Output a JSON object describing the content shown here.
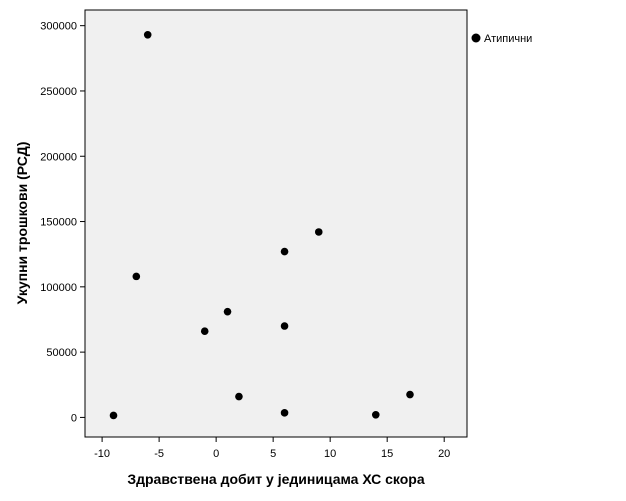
{
  "chart_data": {
    "type": "scatter",
    "xlabel": "Здравствена добит у јединицама ХС скора",
    "ylabel": "Укупни трошкови (РСД)",
    "xlim": [
      -11.5,
      22
    ],
    "ylim": [
      -15000,
      312000
    ],
    "x_ticks": [
      -10,
      -5,
      0,
      5,
      10,
      15,
      20
    ],
    "x_tick_labels": [
      "-10",
      "-5",
      "0",
      "5",
      "10",
      "15",
      "20"
    ],
    "y_ticks": [
      0,
      50000,
      100000,
      150000,
      200000,
      250000,
      300000
    ],
    "y_tick_labels": [
      "0",
      "50000",
      "100000",
      "150000",
      "200000",
      "250000",
      "300000"
    ],
    "grid": false,
    "legend_position": "top-right, outside plot",
    "series": [
      {
        "name": "Атипични",
        "color": "#000000",
        "points": [
          {
            "x": -9,
            "y": 1500
          },
          {
            "x": -7,
            "y": 108000
          },
          {
            "x": -6,
            "y": 293000
          },
          {
            "x": -1,
            "y": 66000
          },
          {
            "x": 1,
            "y": 81000
          },
          {
            "x": 2,
            "y": 16000
          },
          {
            "x": 6,
            "y": 127000
          },
          {
            "x": 6,
            "y": 70000
          },
          {
            "x": 6,
            "y": 3500
          },
          {
            "x": 9,
            "y": 142000
          },
          {
            "x": 14,
            "y": 2000
          },
          {
            "x": 17,
            "y": 17500
          }
        ]
      }
    ],
    "plot_background": "#f0f0f0"
  }
}
